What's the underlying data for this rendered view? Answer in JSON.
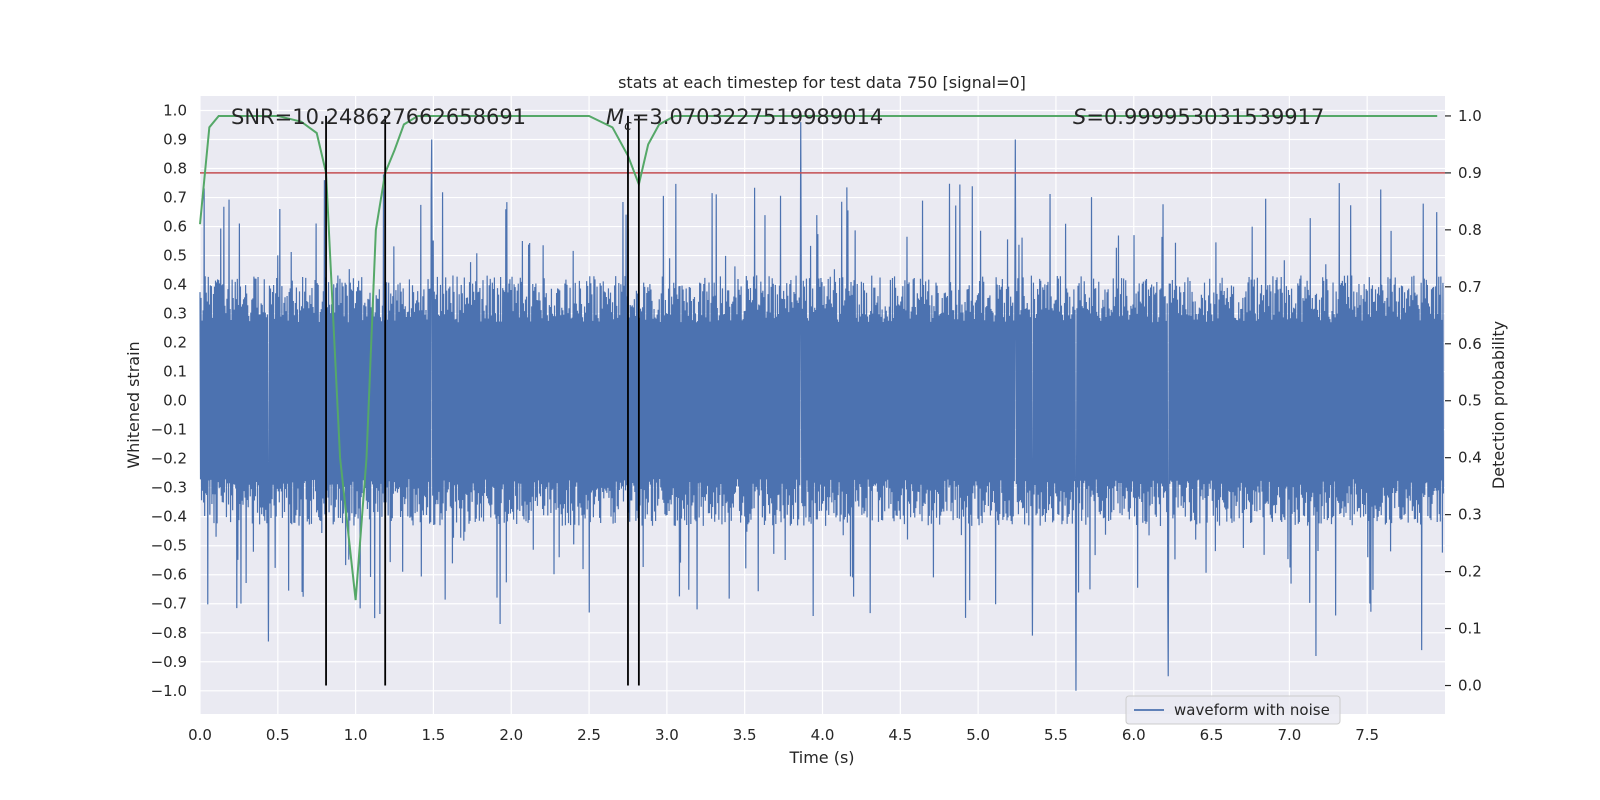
{
  "chart_data": {
    "type": "line",
    "title": "stats at each timestep for test data 750 [signal=0]",
    "xlabel": "Time (s)",
    "ylabel_left": "Whitened strain",
    "ylabel_right": "Detection probability",
    "xlim": [
      0.0,
      8.0
    ],
    "ylim_left": [
      -1.08,
      1.05
    ],
    "ylim_right": [
      -0.05,
      1.035
    ],
    "x_ticks": [
      "0.0",
      "0.5",
      "1.0",
      "1.5",
      "2.0",
      "2.5",
      "3.0",
      "3.5",
      "4.0",
      "4.5",
      "5.0",
      "5.5",
      "6.0",
      "6.5",
      "7.0",
      "7.5"
    ],
    "x_tick_values": [
      0,
      0.5,
      1,
      1.5,
      2,
      2.5,
      3,
      3.5,
      4,
      4.5,
      5,
      5.5,
      6,
      6.5,
      7,
      7.5
    ],
    "y_ticks_left": [
      "1.0",
      "0.9",
      "0.8",
      "0.7",
      "0.6",
      "0.5",
      "0.4",
      "0.3",
      "0.2",
      "0.1",
      "0.0",
      "−0.1",
      "−0.2",
      "−0.3",
      "−0.4",
      "−0.5",
      "−0.6",
      "−0.7",
      "−0.8",
      "−0.9",
      "−1.0"
    ],
    "y_tick_values_left": [
      1.0,
      0.9,
      0.8,
      0.7,
      0.6,
      0.5,
      0.4,
      0.3,
      0.2,
      0.1,
      0.0,
      -0.1,
      -0.2,
      -0.3,
      -0.4,
      -0.5,
      -0.6,
      -0.7,
      -0.8,
      -0.9,
      -1.0
    ],
    "y_ticks_right": [
      "1.0",
      "0.9",
      "0.8",
      "0.7",
      "0.6",
      "0.5",
      "0.4",
      "0.3",
      "0.2",
      "0.1",
      "0.0"
    ],
    "y_tick_values_right": [
      1.0,
      0.9,
      0.8,
      0.7,
      0.6,
      0.5,
      0.4,
      0.3,
      0.2,
      0.1,
      0.0
    ],
    "annotations": {
      "snr": "SNR=10.248627662658691",
      "mc_symbol": "M",
      "mc_sub": "c",
      "mc_value": "=3.0703227519989014",
      "s_symbol": "S",
      "s_value": "=0.999953031539917"
    },
    "threshold": 0.9,
    "vertical_lines_x": [
      0.81,
      1.19,
      2.75,
      2.82
    ],
    "waveform": {
      "name": "waveform with noise",
      "samples": 2400,
      "t_start": 0.0,
      "t_end": 7.99,
      "typical_envelope": 0.36,
      "peaks": [
        {
          "x": 0.44,
          "y": -0.83
        },
        {
          "x": 0.8,
          "y": 0.76
        },
        {
          "x": 1.18,
          "y": 0.78
        },
        {
          "x": 1.49,
          "y": 0.9
        },
        {
          "x": 1.93,
          "y": -0.77
        },
        {
          "x": 2.5,
          "y": -0.73
        },
        {
          "x": 3.86,
          "y": 0.96
        },
        {
          "x": 5.24,
          "y": 0.9
        },
        {
          "x": 5.35,
          "y": -0.81
        },
        {
          "x": 5.63,
          "y": -1.0
        },
        {
          "x": 6.22,
          "y": -0.95
        },
        {
          "x": 7.17,
          "y": -0.88
        },
        {
          "x": 7.85,
          "y": -0.86
        }
      ]
    },
    "detection_probability": {
      "x": [
        0.0,
        0.06,
        0.12,
        0.5,
        0.65,
        0.75,
        0.81,
        0.9,
        1.0,
        1.07,
        1.13,
        1.19,
        1.25,
        1.31,
        1.4,
        2.5,
        2.65,
        2.75,
        2.82,
        2.88,
        2.95,
        3.05,
        7.95
      ],
      "y": [
        0.81,
        0.98,
        1.0,
        1.0,
        0.99,
        0.97,
        0.9,
        0.4,
        0.15,
        0.4,
        0.8,
        0.9,
        0.94,
        0.985,
        1.0,
        1.0,
        0.98,
        0.93,
        0.88,
        0.95,
        0.985,
        1.0,
        1.0
      ]
    },
    "colors": {
      "background": "#eaeaf2",
      "grid": "#ffffff",
      "waveform": "#4c72b0",
      "probability": "#55a868",
      "threshold": "#c44e52",
      "vlines": "#000000"
    },
    "legend": {
      "label": "waveform with noise",
      "placement": "lower-right"
    }
  }
}
